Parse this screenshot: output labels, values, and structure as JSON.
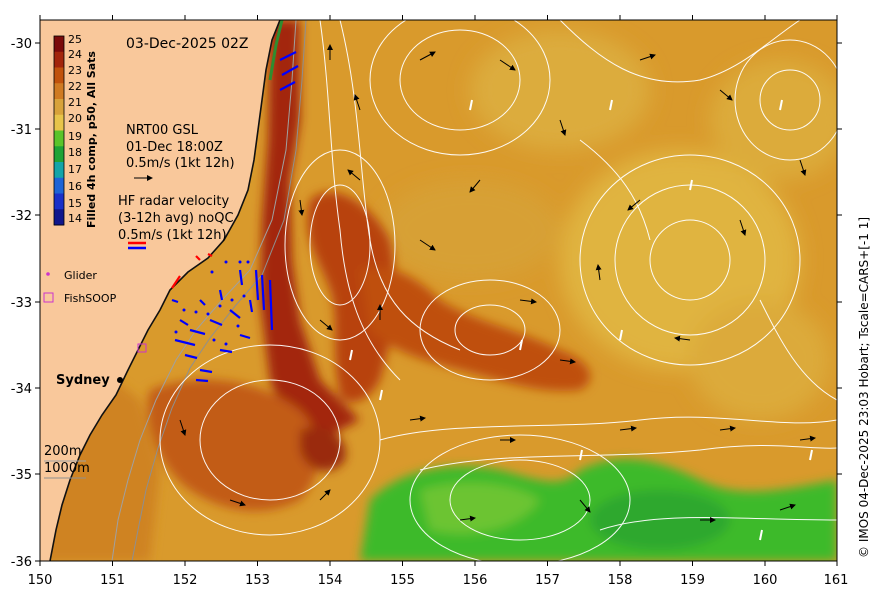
{
  "map": {
    "timestamp": "03-Dec-2025 02Z",
    "colorbar": {
      "label": "Filled 4h comp, p50, All Sats",
      "ticks": [
        "25",
        "24",
        "23",
        "22",
        "21",
        "20",
        "19",
        "18",
        "17",
        "16",
        "15",
        "14"
      ],
      "colors": [
        "#7a0a0a",
        "#a2250b",
        "#c0520c",
        "#cf7a22",
        "#d8a23a",
        "#e8c44a",
        "#5ac42a",
        "#1ea335",
        "#12a4a8",
        "#1d63d6",
        "#1a2fc8",
        "#10168c"
      ]
    },
    "gsl": {
      "line1": "NRT00 GSL",
      "line2": "01-Dec 18:00Z",
      "line3": "0.5m/s (1kt 12h)"
    },
    "radar": {
      "line1": "HF radar velocity",
      "line2": "(3-12h avg) noQC",
      "line3": "0.5m/s (1kt 12h)"
    },
    "legend": {
      "glider": "Glider",
      "fishsoop": "FishSOOP"
    },
    "place": "Sydney",
    "depth": {
      "d200": "200m",
      "d1000": "1000m"
    },
    "credit": "© IMOS 04-Dec-2025 23:03 Hobart; Tscale=CARS+[-1 1]",
    "x_ticks": [
      "150",
      "151",
      "152",
      "153",
      "154",
      "155",
      "156",
      "157",
      "158",
      "159",
      "160",
      "161"
    ],
    "y_ticks": [
      "-30",
      "-31",
      "-32",
      "-33",
      "-34",
      "-35",
      "-36"
    ],
    "colors": {
      "land": "#f9c89b",
      "warm_water": "#d89a2e",
      "core_water": "#a8300c",
      "cool_water": "#3fbb2a",
      "glider": "#cc33cc",
      "radar_red": "#ff0000",
      "radar_blue": "#0000ff"
    }
  }
}
